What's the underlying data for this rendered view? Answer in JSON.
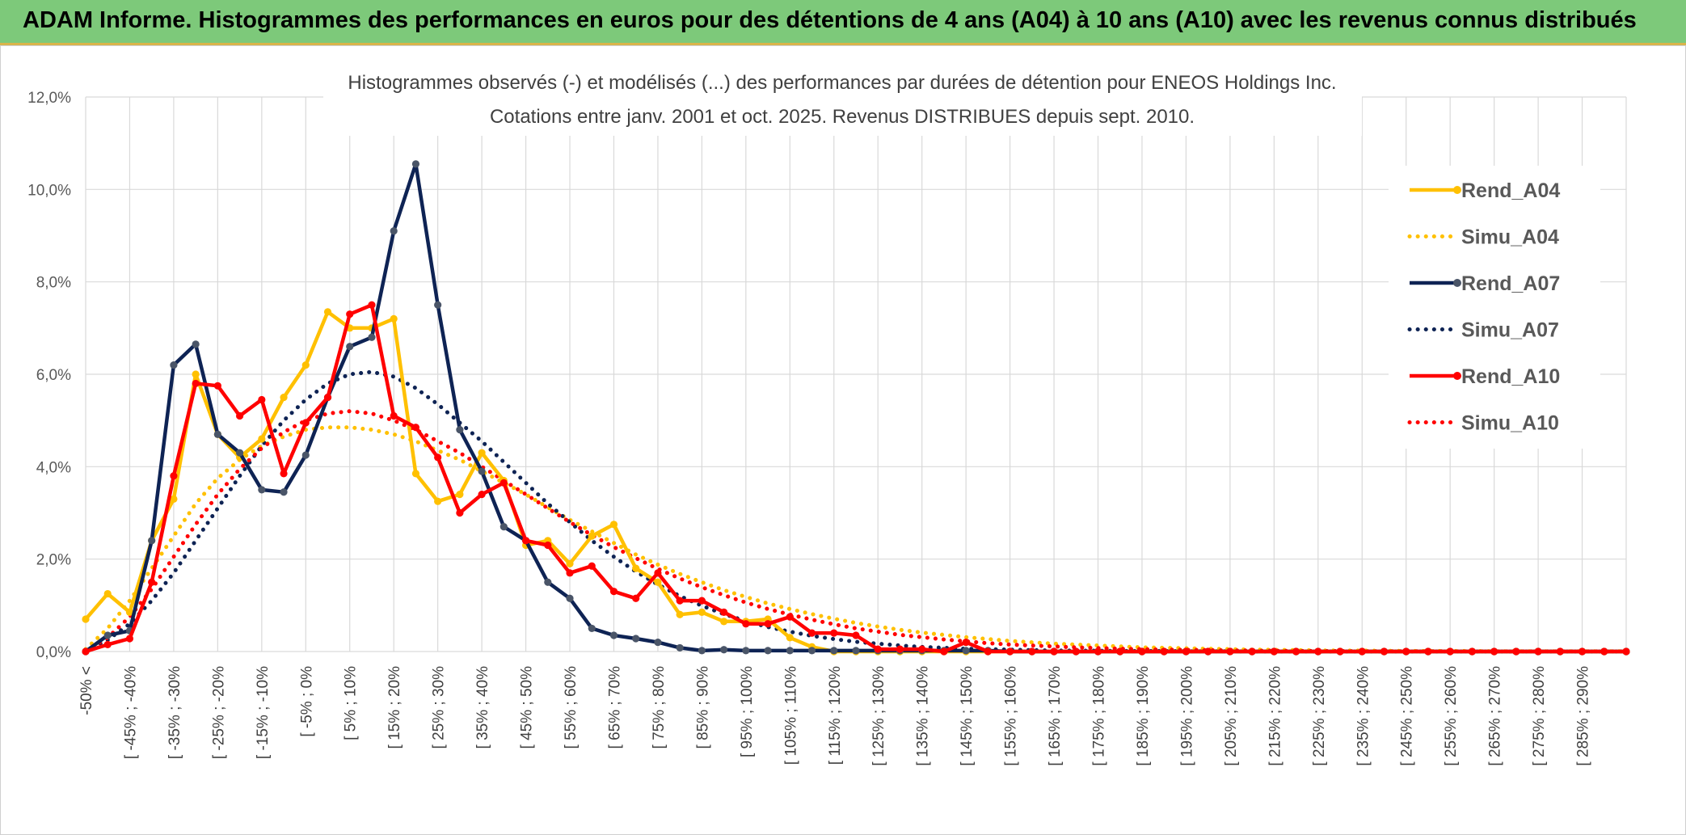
{
  "banner": {
    "title": "ADAM Informe. Histogrammes des performances en euros pour des détentions de 4 ans (A04) à 10 ans (A10) avec les revenus connus distribués"
  },
  "colors": {
    "a04": "#FFC000",
    "a07": "#0E2354",
    "a10": "#FF0000",
    "banner": "#7DC97A"
  },
  "chart_data": {
    "type": "line",
    "title": "Histogrammes observés (-) et modélisés (...) des performances par durées de détention pour ENEOS Holdings Inc.",
    "subtitle": "Cotations entre janv. 2001 et oct. 2025. Revenus DISTRIBUES depuis sept. 2010.",
    "xlabel": "",
    "ylabel": "",
    "ylim": [
      0,
      12
    ],
    "yticks": [
      "0,0%",
      "2,0%",
      "4,0%",
      "6,0%",
      "8,0%",
      "10,0%",
      "12,0%"
    ],
    "grid": true,
    "legend_position": "right",
    "x_tick_labels": [
      "-50% <",
      "[ -45% ; -40%",
      "[ -35% ; -30%",
      "[ -25% ; -20%",
      "[ -15% ; -10%",
      "[ -5% ; 0%",
      "[ 5% ; 10%",
      "[ 15% ; 20%",
      "[ 25% ; 30%",
      "[ 35% ; 40%",
      "[ 45% ; 50%",
      "[ 55% ; 60%",
      "[ 65% ; 70%",
      "[ 75% ; 80%",
      "[ 85% ; 90%",
      "[ 95% ; 100%",
      "[ 105% ; 110%",
      "[ 115% ; 120%",
      "[ 125% ; 130%",
      "[ 135% ; 140%",
      "[ 145% ; 150%",
      "[ 155% ; 160%",
      "[ 165% ; 170%",
      "[ 175% ; 180%",
      "[ 185% ; 190%",
      "[ 195% ; 200%",
      "[ 205% ; 210%",
      "[ 215% ; 220%",
      "[ 225% ; 230%",
      "[ 235% ; 240%",
      "[ 245% ; 250%",
      "[ 255% ; 260%",
      "[ 265% ; 270%",
      "[ 275% ; 280%",
      "[ 285% ; 290%"
    ],
    "series": [
      {
        "name": "Rend_A04",
        "style": "solid",
        "color": "#FFC000",
        "values": [
          0.7,
          1.25,
          0.85,
          2.4,
          3.3,
          6.0,
          4.7,
          4.2,
          4.6,
          5.5,
          6.2,
          7.35,
          7.0,
          7.0,
          7.2,
          3.85,
          3.25,
          3.4,
          4.3,
          3.7,
          2.3,
          2.4,
          1.9,
          2.5,
          2.75,
          1.8,
          1.5,
          0.8,
          0.85,
          0.65,
          0.65,
          0.7,
          0.3,
          0.1,
          0,
          0,
          0,
          0,
          0,
          0,
          0,
          0,
          0,
          0,
          0,
          0,
          0,
          0,
          0,
          0,
          0,
          0,
          0,
          0,
          0,
          0,
          0,
          0,
          0,
          0,
          0,
          0,
          0,
          0,
          0,
          0,
          0,
          0,
          0,
          0,
          0
        ]
      },
      {
        "name": "Simu_A04",
        "style": "dotted",
        "color": "#FFC000",
        "values": [
          0.05,
          0.5,
          1.1,
          1.8,
          2.5,
          3.2,
          3.75,
          4.15,
          4.45,
          4.65,
          4.8,
          4.85,
          4.85,
          4.8,
          4.7,
          4.55,
          4.35,
          4.15,
          3.9,
          3.65,
          3.4,
          3.12,
          2.85,
          2.6,
          2.35,
          2.1,
          1.88,
          1.68,
          1.5,
          1.33,
          1.18,
          1.04,
          0.92,
          0.81,
          0.71,
          0.62,
          0.54,
          0.47,
          0.41,
          0.36,
          0.31,
          0.27,
          0.23,
          0.2,
          0.17,
          0.15,
          0.13,
          0.11,
          0.09,
          0.08,
          0.07,
          0.06,
          0.05,
          0.04,
          0.035,
          0.03,
          0.025,
          0.02,
          0.02,
          0.015,
          0.01,
          0.01,
          0.01,
          0.01,
          0.005,
          0.005,
          0.005,
          0.005,
          0.005,
          0.005,
          0.005
        ]
      },
      {
        "name": "Rend_A07",
        "style": "solid",
        "color": "#0E2354",
        "values": [
          0,
          0.35,
          0.45,
          2.4,
          6.2,
          6.65,
          4.7,
          4.3,
          3.5,
          3.45,
          4.25,
          5.5,
          6.6,
          6.8,
          9.1,
          10.55,
          7.5,
          4.8,
          3.9,
          2.7,
          2.4,
          1.5,
          1.15,
          0.5,
          0.35,
          0.28,
          0.2,
          0.08,
          0.02,
          0.04,
          0.02,
          0.02,
          0.02,
          0.02,
          0.02,
          0.02,
          0.02,
          0.02,
          0.02,
          0.02,
          0.02,
          0.02,
          0,
          0,
          0,
          0,
          0,
          0,
          0,
          0,
          0,
          0,
          0,
          0,
          0,
          0,
          0,
          0,
          0,
          0,
          0,
          0,
          0,
          0,
          0,
          0,
          0,
          0,
          0,
          0,
          0
        ]
      },
      {
        "name": "Simu_A07",
        "style": "dotted",
        "color": "#0E2354",
        "values": [
          0.02,
          0.25,
          0.6,
          1.1,
          1.7,
          2.4,
          3.1,
          3.8,
          4.45,
          5.0,
          5.45,
          5.8,
          6.0,
          6.05,
          5.95,
          5.7,
          5.35,
          4.95,
          4.55,
          4.1,
          3.65,
          3.2,
          2.8,
          2.4,
          2.05,
          1.73,
          1.45,
          1.2,
          0.99,
          0.81,
          0.66,
          0.53,
          0.43,
          0.34,
          0.27,
          0.21,
          0.17,
          0.13,
          0.1,
          0.08,
          0.06,
          0.05,
          0.04,
          0.03,
          0.02,
          0.02,
          0.015,
          0.01,
          0.01,
          0.01,
          0.005,
          0.005,
          0.005,
          0,
          0,
          0,
          0,
          0,
          0,
          0,
          0,
          0,
          0,
          0,
          0,
          0,
          0,
          0,
          0,
          0,
          0
        ]
      },
      {
        "name": "Rend_A10",
        "style": "solid",
        "color": "#FF0000",
        "values": [
          0,
          0.15,
          0.28,
          1.5,
          3.8,
          5.8,
          5.75,
          5.1,
          5.45,
          3.85,
          4.95,
          5.5,
          7.3,
          7.5,
          5.1,
          4.85,
          4.2,
          3.0,
          3.4,
          3.65,
          2.4,
          2.3,
          1.7,
          1.85,
          1.3,
          1.15,
          1.7,
          1.1,
          1.1,
          0.85,
          0.6,
          0.6,
          0.75,
          0.4,
          0.4,
          0.35,
          0.05,
          0.05,
          0.05,
          0,
          0.2,
          0,
          0,
          0,
          0,
          0,
          0,
          0,
          0,
          0,
          0,
          0,
          0,
          0,
          0,
          0,
          0,
          0,
          0,
          0,
          0,
          0,
          0,
          0,
          0,
          0,
          0,
          0,
          0,
          0,
          0
        ]
      },
      {
        "name": "Simu_A10",
        "style": "dotted",
        "color": "#FF0000",
        "values": [
          0.02,
          0.3,
          0.75,
          1.35,
          2.05,
          2.75,
          3.4,
          3.95,
          4.4,
          4.75,
          5.0,
          5.15,
          5.2,
          5.15,
          5.0,
          4.8,
          4.55,
          4.3,
          4.0,
          3.7,
          3.4,
          3.1,
          2.8,
          2.52,
          2.26,
          2.02,
          1.79,
          1.58,
          1.39,
          1.22,
          1.06,
          0.92,
          0.8,
          0.69,
          0.59,
          0.5,
          0.43,
          0.36,
          0.31,
          0.26,
          0.22,
          0.18,
          0.15,
          0.13,
          0.11,
          0.09,
          0.075,
          0.06,
          0.05,
          0.04,
          0.035,
          0.03,
          0.025,
          0.02,
          0.015,
          0.012,
          0.01,
          0.008,
          0.006,
          0.005,
          0.004,
          0.003,
          0.003,
          0.002,
          0.002,
          0.001,
          0.001,
          0.001,
          0.001,
          0.001,
          0.001
        ]
      }
    ]
  }
}
